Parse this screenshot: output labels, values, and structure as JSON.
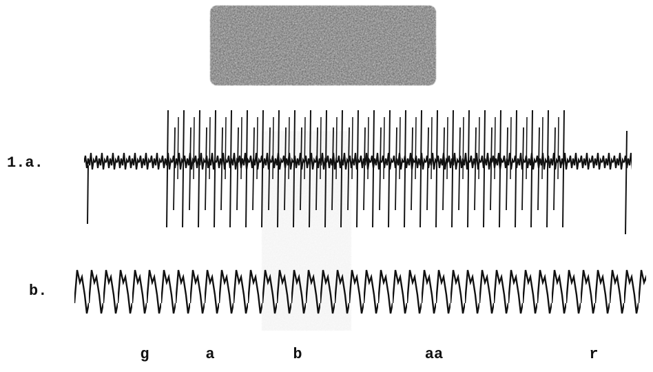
{
  "trace_labels": {
    "a": "1.a.",
    "b": "b."
  },
  "segment_labels": [
    "g",
    "a",
    "b",
    "aa",
    "r"
  ]
}
